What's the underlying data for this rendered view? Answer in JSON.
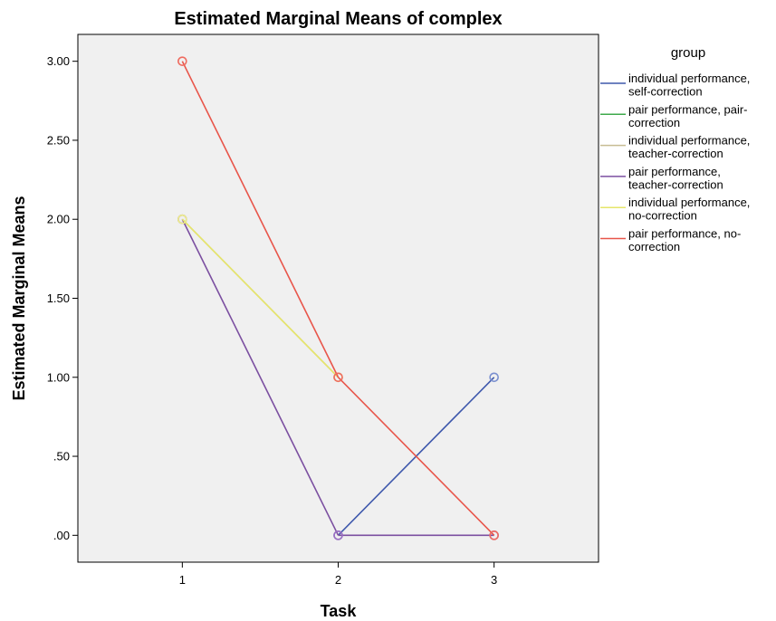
{
  "chart_data": {
    "type": "line",
    "title": "Estimated Marginal Means of complex",
    "xlabel": "Task",
    "ylabel": "Estimated Marginal Means",
    "categories": [
      "1",
      "2",
      "3"
    ],
    "x": [
      1,
      2,
      3
    ],
    "xlim": [
      0.33,
      3.67
    ],
    "ylim": [
      -0.17,
      3.17
    ],
    "y_ticks": [
      0,
      0.5,
      1.0,
      1.5,
      2.0,
      2.5,
      3.0
    ],
    "y_tick_labels": [
      ".00",
      ".50",
      "1.00",
      "1.50",
      "2.00",
      "2.50",
      "3.00"
    ],
    "grid": false,
    "plot_background": "#f0f0f0",
    "legend_title": "group",
    "legend_position": "right",
    "series": [
      {
        "name": [
          "individual performance,",
          "self-correction"
        ],
        "color": "#3e58ac",
        "marker_color": "#7a8fcf",
        "values": [
          null,
          0,
          1
        ]
      },
      {
        "name": [
          "pair performance, pair-",
          "correction"
        ],
        "color": "#3ea94b",
        "marker_color": "#78c483",
        "values": [
          null,
          null,
          null
        ]
      },
      {
        "name": [
          "individual performance,",
          "teacher-correction"
        ],
        "color": "#c7bc93",
        "marker_color": "#c7bc93",
        "values": [
          2,
          1,
          null
        ]
      },
      {
        "name": [
          "pair performance,",
          "teacher-correction"
        ],
        "color": "#7b4fa0",
        "marker_color": "#9c6fc2",
        "values": [
          2,
          0,
          0
        ]
      },
      {
        "name": [
          "individual performance,",
          "no-correction"
        ],
        "color": "#e6e66a",
        "marker_color": "#eded8a",
        "values": [
          2,
          1,
          null
        ]
      },
      {
        "name": [
          "pair performance, no-",
          "correction"
        ],
        "color": "#e8554a",
        "marker_color": "#ef6b5f",
        "values": [
          3,
          1,
          0
        ]
      }
    ]
  }
}
